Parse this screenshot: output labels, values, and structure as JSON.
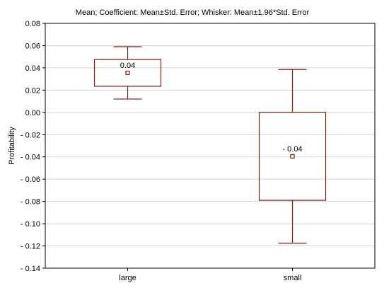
{
  "chart_data": {
    "type": "box",
    "title": "Mean; Coefficient: Mean±Std. Error; Whisker: Mean±1.96*Std. Error",
    "xlabel": "",
    "ylabel": "Profitability",
    "ylim": [
      -0.14,
      0.08
    ],
    "y_ticks": [
      "0.08",
      "0.06",
      "0.04",
      "0.02",
      "0.00",
      "- 0.02",
      "- 0.04",
      "- 0.06",
      "- 0.08",
      "- 0.10",
      "- 0.12",
      "- 0.14"
    ],
    "y_tick_values": [
      0.08,
      0.06,
      0.04,
      0.02,
      0.0,
      -0.02,
      -0.04,
      -0.06,
      -0.08,
      -0.1,
      -0.12,
      -0.14
    ],
    "grid": true,
    "box_color": "#7b1a1a",
    "categories": [
      "large",
      "small"
    ],
    "groups": [
      {
        "category": "large",
        "mean": 0.0355,
        "box_low": 0.0235,
        "box_high": 0.0475,
        "whisker_low": 0.012,
        "whisker_high": 0.059,
        "label": "0.04"
      },
      {
        "category": "small",
        "mean": -0.0395,
        "box_low": -0.079,
        "box_high": 0.0,
        "whisker_low": -0.1175,
        "whisker_high": 0.0385,
        "label": "- 0.04"
      }
    ]
  }
}
